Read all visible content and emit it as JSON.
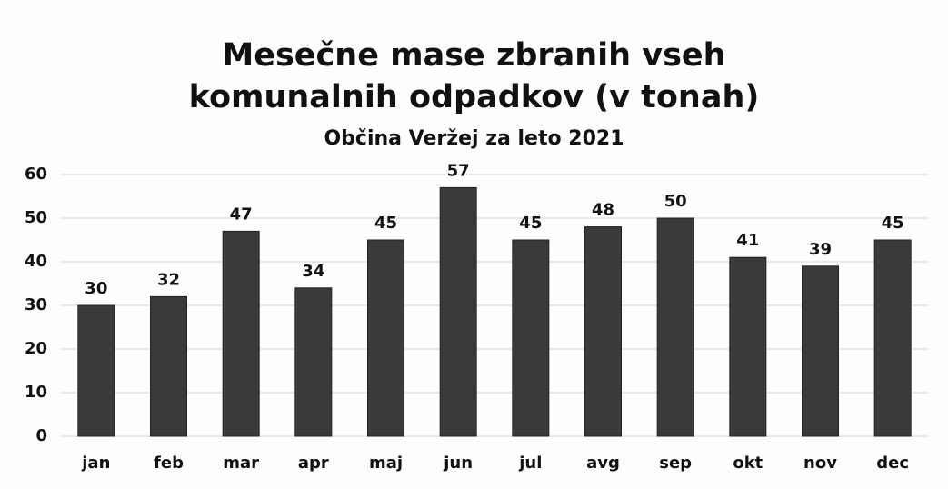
{
  "chart_data": {
    "type": "bar",
    "title": "Mesečne mase zbranih vseh komunalnih odpadkov (v tonah)",
    "subtitle": "Občina Veržej za leto 2021",
    "categories": [
      "jan",
      "feb",
      "mar",
      "apr",
      "maj",
      "jun",
      "jul",
      "avg",
      "sep",
      "okt",
      "nov",
      "dec"
    ],
    "values": [
      30,
      32,
      47,
      34,
      45,
      57,
      45,
      48,
      50,
      41,
      39,
      45
    ],
    "color": "#3a3a3a",
    "ylim": [
      0,
      60
    ],
    "yticks": [
      0,
      10,
      20,
      30,
      40,
      50,
      60
    ],
    "grid": true
  }
}
